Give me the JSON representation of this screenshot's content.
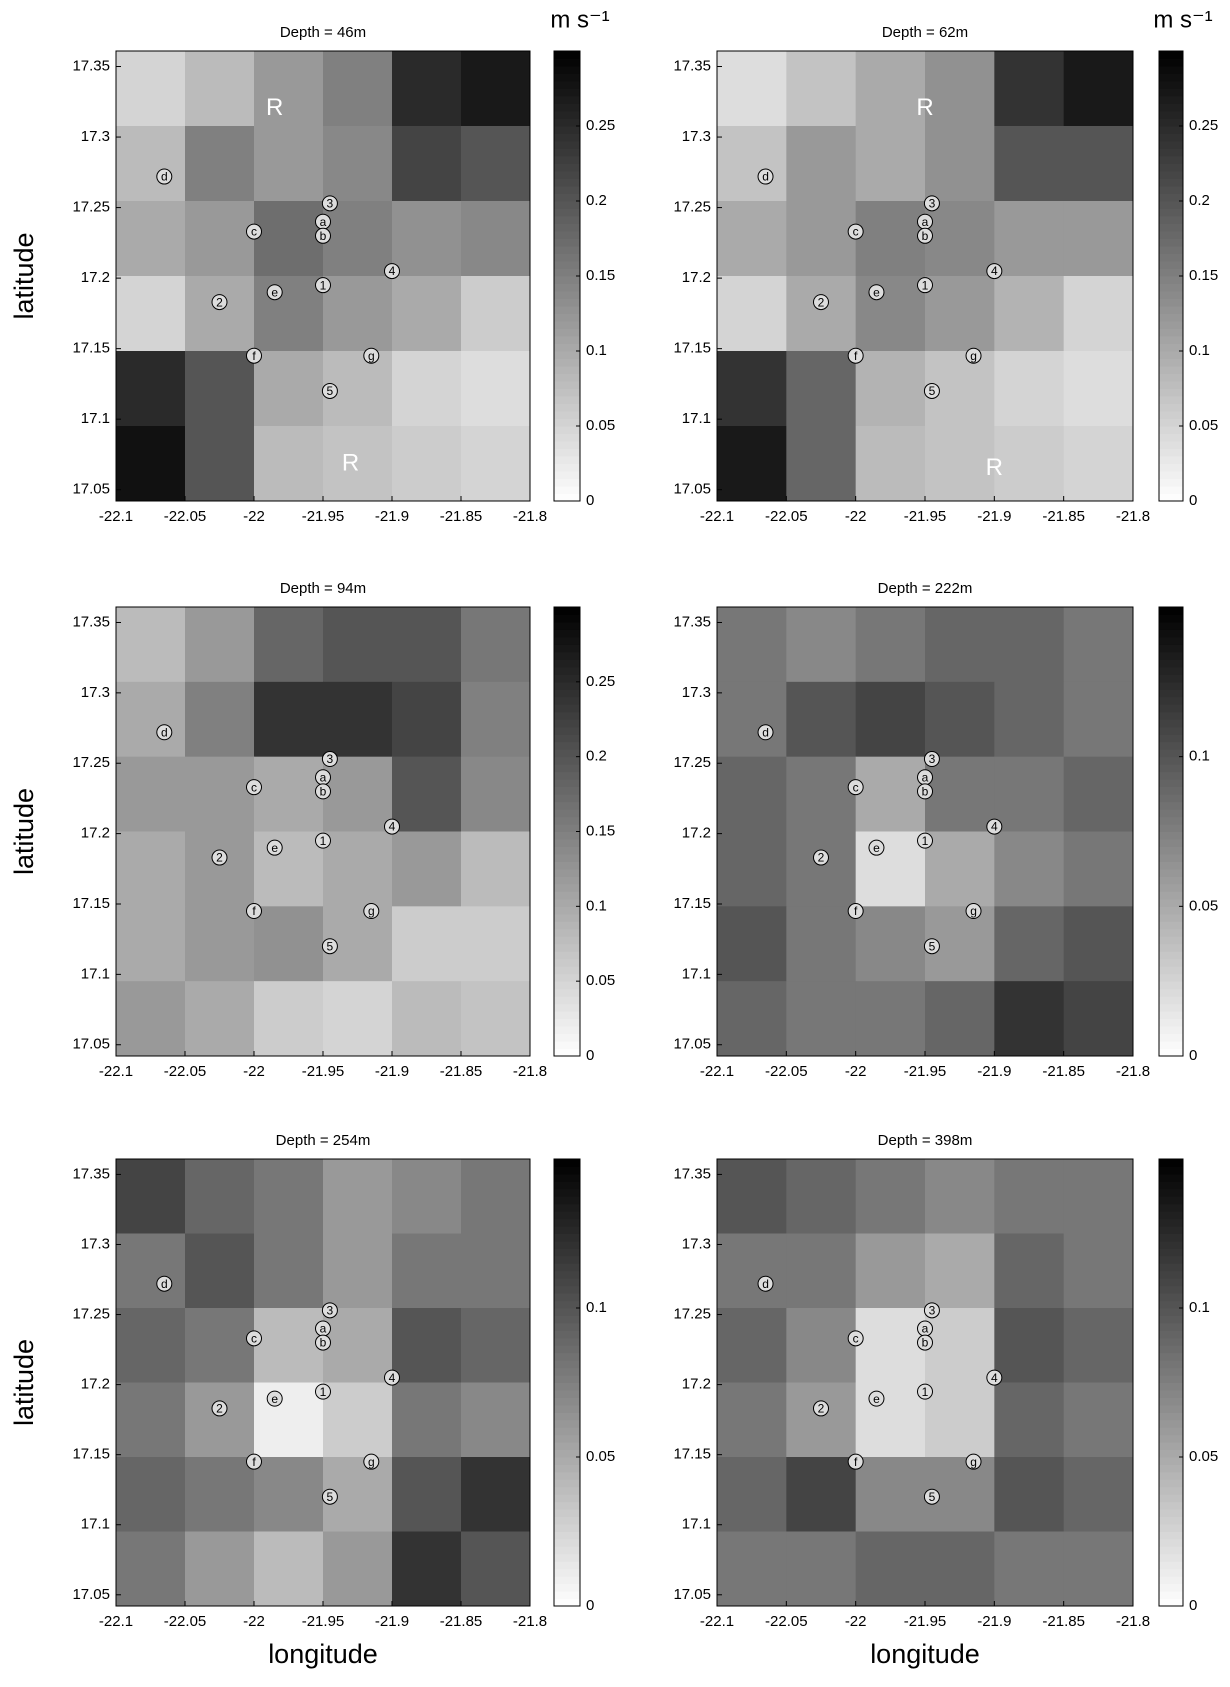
{
  "chart_data": [
    {
      "type": "heatmap",
      "title": "Depth = 46m",
      "colorbar_label": "m s⁻¹",
      "ylabel": "latitude",
      "xlim": [
        -22.1,
        -21.8
      ],
      "ylim": [
        17.042,
        17.361
      ],
      "xticks": [
        -22.1,
        -22.05,
        -22,
        -21.95,
        -21.9,
        -21.85,
        -21.8
      ],
      "yticks": [
        17.05,
        17.1,
        17.15,
        17.2,
        17.25,
        17.3,
        17.35
      ],
      "clim": [
        0,
        0.3
      ],
      "cticks": [
        0,
        0.05,
        0.1,
        0.15,
        0.2,
        0.25
      ],
      "z": [
        [
          0.05,
          0.08,
          0.12,
          0.15,
          0.25,
          0.27
        ],
        [
          0.08,
          0.15,
          0.12,
          0.14,
          0.22,
          0.2
        ],
        [
          0.1,
          0.12,
          0.17,
          0.15,
          0.13,
          0.14
        ],
        [
          0.05,
          0.1,
          0.15,
          0.12,
          0.1,
          0.06
        ],
        [
          0.25,
          0.2,
          0.1,
          0.08,
          0.05,
          0.04
        ],
        [
          0.28,
          0.2,
          0.08,
          0.07,
          0.06,
          0.05
        ]
      ],
      "annotations": [
        {
          "text": "R",
          "x": -21.985,
          "y": 17.32
        },
        {
          "text": "R",
          "x": -21.93,
          "y": 17.068
        }
      ]
    },
    {
      "type": "heatmap",
      "title": "Depth = 62m",
      "colorbar_label": "m s⁻¹",
      "xlim": [
        -22.1,
        -21.8
      ],
      "ylim": [
        17.042,
        17.361
      ],
      "xticks": [
        -22.1,
        -22.05,
        -22,
        -21.95,
        -21.9,
        -21.85,
        -21.8
      ],
      "yticks": [
        17.05,
        17.1,
        17.15,
        17.2,
        17.25,
        17.3,
        17.35
      ],
      "clim": [
        0,
        0.3
      ],
      "cticks": [
        0,
        0.05,
        0.1,
        0.15,
        0.2,
        0.25
      ],
      "z": [
        [
          0.04,
          0.07,
          0.1,
          0.13,
          0.24,
          0.27
        ],
        [
          0.07,
          0.12,
          0.1,
          0.13,
          0.2,
          0.2
        ],
        [
          0.1,
          0.12,
          0.15,
          0.14,
          0.12,
          0.12
        ],
        [
          0.05,
          0.1,
          0.14,
          0.12,
          0.09,
          0.05
        ],
        [
          0.24,
          0.18,
          0.09,
          0.07,
          0.05,
          0.04
        ],
        [
          0.27,
          0.18,
          0.08,
          0.07,
          0.06,
          0.05
        ]
      ],
      "annotations": [
        {
          "text": "R",
          "x": -21.95,
          "y": 17.32
        },
        {
          "text": "R",
          "x": -21.9,
          "y": 17.065
        }
      ]
    },
    {
      "type": "heatmap",
      "title": "Depth = 94m",
      "ylabel": "latitude",
      "xlim": [
        -22.1,
        -21.8
      ],
      "ylim": [
        17.042,
        17.361
      ],
      "xticks": [
        -22.1,
        -22.05,
        -22,
        -21.95,
        -21.9,
        -21.85,
        -21.8
      ],
      "yticks": [
        17.05,
        17.1,
        17.15,
        17.2,
        17.25,
        17.3,
        17.35
      ],
      "clim": [
        0,
        0.3
      ],
      "cticks": [
        0,
        0.05,
        0.1,
        0.15,
        0.2,
        0.25
      ],
      "z": [
        [
          0.08,
          0.12,
          0.18,
          0.2,
          0.2,
          0.16
        ],
        [
          0.1,
          0.15,
          0.24,
          0.24,
          0.22,
          0.15
        ],
        [
          0.12,
          0.12,
          0.1,
          0.12,
          0.2,
          0.14
        ],
        [
          0.1,
          0.12,
          0.08,
          0.1,
          0.12,
          0.08
        ],
        [
          0.1,
          0.12,
          0.13,
          0.1,
          0.06,
          0.06
        ],
        [
          0.12,
          0.1,
          0.06,
          0.05,
          0.08,
          0.07
        ]
      ]
    },
    {
      "type": "heatmap",
      "title": "Depth = 222m",
      "xlim": [
        -22.1,
        -21.8
      ],
      "ylim": [
        17.042,
        17.361
      ],
      "xticks": [
        -22.1,
        -22.05,
        -22,
        -21.95,
        -21.9,
        -21.85,
        -21.8
      ],
      "yticks": [
        17.05,
        17.1,
        17.15,
        17.2,
        17.25,
        17.3,
        17.35
      ],
      "clim": [
        0,
        0.15
      ],
      "cticks": [
        0,
        0.05,
        0.1
      ],
      "z": [
        [
          0.08,
          0.07,
          0.08,
          0.09,
          0.09,
          0.08
        ],
        [
          0.08,
          0.1,
          0.11,
          0.1,
          0.09,
          0.08
        ],
        [
          0.09,
          0.08,
          0.05,
          0.08,
          0.08,
          0.09
        ],
        [
          0.09,
          0.08,
          0.02,
          0.05,
          0.07,
          0.08
        ],
        [
          0.1,
          0.08,
          0.07,
          0.06,
          0.09,
          0.1
        ],
        [
          0.09,
          0.08,
          0.08,
          0.09,
          0.12,
          0.11
        ]
      ]
    },
    {
      "type": "heatmap",
      "title": "Depth = 254m",
      "ylabel": "latitude",
      "xlabel": "longitude",
      "xlim": [
        -22.1,
        -21.8
      ],
      "ylim": [
        17.042,
        17.361
      ],
      "xticks": [
        -22.1,
        -22.05,
        -22,
        -21.95,
        -21.9,
        -21.85,
        -21.8
      ],
      "yticks": [
        17.05,
        17.1,
        17.15,
        17.2,
        17.25,
        17.3,
        17.35
      ],
      "clim": [
        0,
        0.15
      ],
      "cticks": [
        0,
        0.05,
        0.1
      ],
      "z": [
        [
          0.11,
          0.09,
          0.08,
          0.06,
          0.07,
          0.08
        ],
        [
          0.08,
          0.1,
          0.08,
          0.06,
          0.08,
          0.08
        ],
        [
          0.09,
          0.08,
          0.04,
          0.05,
          0.1,
          0.09
        ],
        [
          0.08,
          0.06,
          0.01,
          0.03,
          0.08,
          0.07
        ],
        [
          0.09,
          0.08,
          0.07,
          0.05,
          0.1,
          0.12
        ],
        [
          0.08,
          0.06,
          0.04,
          0.06,
          0.12,
          0.1
        ]
      ]
    },
    {
      "type": "heatmap",
      "title": "Depth = 398m",
      "xlabel": "longitude",
      "xlim": [
        -22.1,
        -21.8
      ],
      "ylim": [
        17.042,
        17.361
      ],
      "xticks": [
        -22.1,
        -22.05,
        -22,
        -21.95,
        -21.9,
        -21.85,
        -21.8
      ],
      "yticks": [
        17.05,
        17.1,
        17.15,
        17.2,
        17.25,
        17.3,
        17.35
      ],
      "clim": [
        0,
        0.15
      ],
      "cticks": [
        0,
        0.05,
        0.1
      ],
      "z": [
        [
          0.1,
          0.09,
          0.08,
          0.07,
          0.08,
          0.08
        ],
        [
          0.08,
          0.08,
          0.06,
          0.05,
          0.09,
          0.08
        ],
        [
          0.09,
          0.07,
          0.02,
          0.03,
          0.1,
          0.09
        ],
        [
          0.08,
          0.06,
          0.02,
          0.03,
          0.09,
          0.08
        ],
        [
          0.09,
          0.11,
          0.07,
          0.07,
          0.1,
          0.09
        ],
        [
          0.08,
          0.08,
          0.09,
          0.09,
          0.08,
          0.08
        ]
      ]
    }
  ],
  "stations": [
    {
      "label": "1",
      "lon": -21.95,
      "lat": 17.195
    },
    {
      "label": "2",
      "lon": -22.025,
      "lat": 17.183
    },
    {
      "label": "3",
      "lon": -21.945,
      "lat": 17.253
    },
    {
      "label": "4",
      "lon": -21.9,
      "lat": 17.205
    },
    {
      "label": "5",
      "lon": -21.945,
      "lat": 17.12
    },
    {
      "label": "a",
      "lon": -21.95,
      "lat": 17.24
    },
    {
      "label": "b",
      "lon": -21.95,
      "lat": 17.23
    },
    {
      "label": "c",
      "lon": -22.0,
      "lat": 17.233
    },
    {
      "label": "d",
      "lon": -22.065,
      "lat": 17.272
    },
    {
      "label": "e",
      "lon": -21.985,
      "lat": 17.19
    },
    {
      "label": "f",
      "lon": -22.0,
      "lat": 17.145
    },
    {
      "label": "g",
      "lon": -21.915,
      "lat": 17.145
    }
  ]
}
